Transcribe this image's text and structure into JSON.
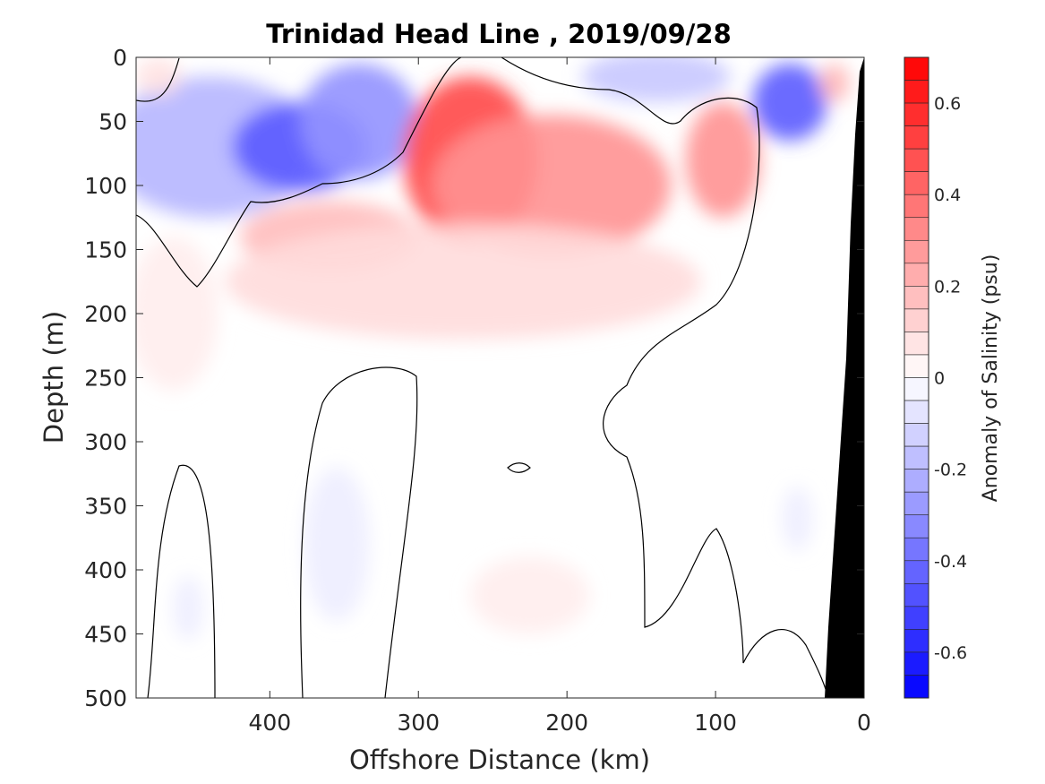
{
  "chart_data": {
    "type": "heatmap",
    "title": "Trinidad Head Line , 2019/09/28",
    "xlabel": "Offshore Distance (km)",
    "ylabel": "Depth (m)",
    "xlim": [
      490,
      0
    ],
    "ylim": [
      0,
      500
    ],
    "x_ticks": [
      400,
      300,
      200,
      100,
      0
    ],
    "y_ticks": [
      0,
      50,
      100,
      150,
      200,
      250,
      300,
      350,
      400,
      450,
      500
    ],
    "colorbar": {
      "label": "Anomaly of Salinity (psu)",
      "range": [
        -0.7,
        0.7
      ],
      "step": 0.05,
      "ticks": [
        0.6,
        0.4,
        0.2,
        0,
        -0.2,
        -0.4,
        -0.6
      ],
      "colors": {
        "positive": "#ff0000",
        "negative": "#0000ff",
        "neutral": "#ffffff"
      }
    },
    "annotations": {
      "bottom_fill": "land / seafloor (black)",
      "contour": "0 psu"
    },
    "features": [
      {
        "x": 440,
        "y": 70,
        "rx": 70,
        "ry": 55,
        "value": -0.2
      },
      {
        "x": 380,
        "y": 70,
        "rx": 45,
        "ry": 35,
        "value": -0.45
      },
      {
        "x": 340,
        "y": 50,
        "rx": 40,
        "ry": 45,
        "value": -0.3
      },
      {
        "x": 475,
        "y": 15,
        "rx": 15,
        "ry": 15,
        "value": 0.08
      },
      {
        "x": 265,
        "y": 80,
        "rx": 45,
        "ry": 65,
        "value": 0.5
      },
      {
        "x": 210,
        "y": 100,
        "rx": 80,
        "ry": 55,
        "value": 0.3
      },
      {
        "x": 360,
        "y": 140,
        "rx": 60,
        "ry": 28,
        "value": 0.18
      },
      {
        "x": 270,
        "y": 175,
        "rx": 160,
        "ry": 45,
        "value": 0.1
      },
      {
        "x": 95,
        "y": 80,
        "rx": 25,
        "ry": 45,
        "value": 0.3
      },
      {
        "x": 50,
        "y": 35,
        "rx": 25,
        "ry": 30,
        "value": -0.45
      },
      {
        "x": 140,
        "y": 15,
        "rx": 50,
        "ry": 20,
        "value": -0.15
      },
      {
        "x": 20,
        "y": 20,
        "rx": 10,
        "ry": 15,
        "value": 0.2
      },
      {
        "x": 465,
        "y": 200,
        "rx": 30,
        "ry": 60,
        "value": 0.05
      },
      {
        "x": 355,
        "y": 380,
        "rx": 22,
        "ry": 60,
        "value": -0.05
      },
      {
        "x": 225,
        "y": 420,
        "rx": 40,
        "ry": 30,
        "value": 0.05
      },
      {
        "x": 455,
        "y": 430,
        "rx": 10,
        "ry": 25,
        "value": -0.05
      },
      {
        "x": 45,
        "y": 360,
        "rx": 10,
        "ry": 25,
        "value": -0.05
      }
    ]
  }
}
